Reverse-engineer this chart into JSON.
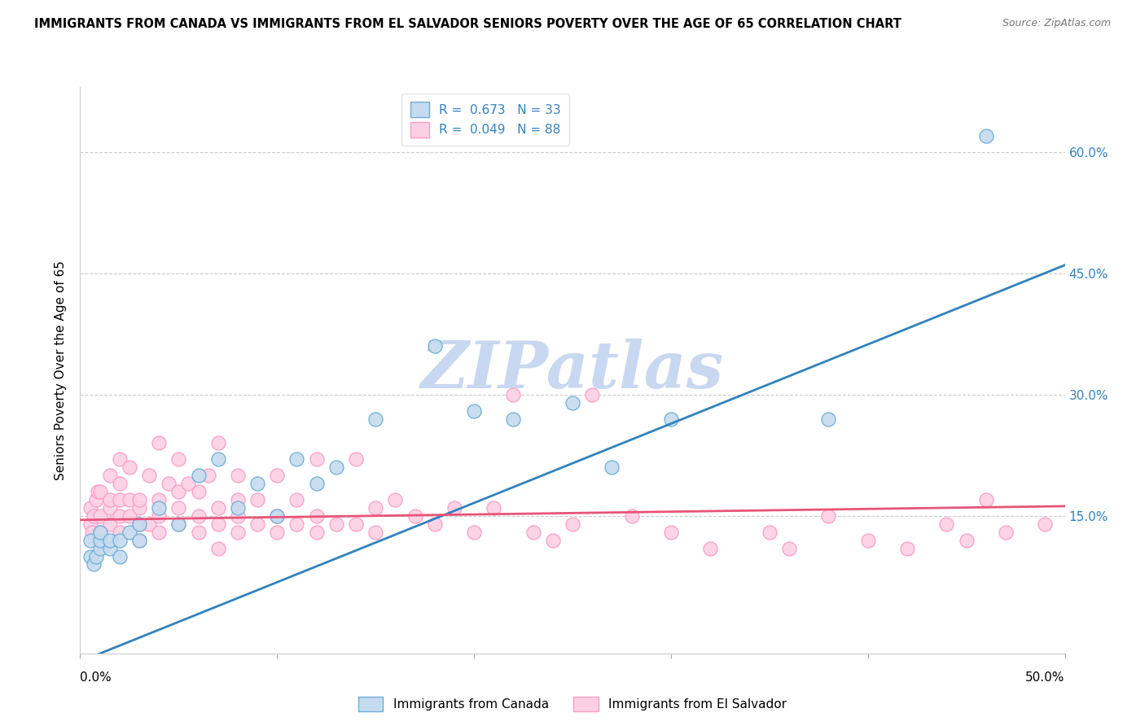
{
  "title": "IMMIGRANTS FROM CANADA VS IMMIGRANTS FROM EL SALVADOR SENIORS POVERTY OVER THE AGE OF 65 CORRELATION CHART",
  "source": "Source: ZipAtlas.com",
  "ylabel": "Seniors Poverty Over the Age of 65",
  "xlim": [
    0.0,
    0.5
  ],
  "ylim": [
    -0.02,
    0.68
  ],
  "yticks": [
    0.15,
    0.3,
    0.45,
    0.6
  ],
  "ytick_labels": [
    "15.0%",
    "30.0%",
    "45.0%",
    "60.0%"
  ],
  "xticks": [
    0.0,
    0.1,
    0.2,
    0.3,
    0.4,
    0.5
  ],
  "canada_R": "0.673",
  "canada_N": "33",
  "salvador_R": "0.049",
  "salvador_N": "88",
  "canada_scatter_color": "#6baed6",
  "canada_fill": "#c6dbef",
  "salvador_scatter_color": "#fb9ec6",
  "salvador_fill": "#fcd0e4",
  "trend_canada_color": "#3182bd",
  "trend_salvador_color": "#e8547a",
  "watermark": "ZIPatlas",
  "watermark_color": "#c8d8f0",
  "legend_label_canada": "Immigrants from Canada",
  "legend_label_salvador": "Immigrants from El Salvador",
  "canada_scatter_x": [
    0.005,
    0.005,
    0.007,
    0.008,
    0.01,
    0.01,
    0.01,
    0.015,
    0.015,
    0.02,
    0.02,
    0.025,
    0.03,
    0.03,
    0.04,
    0.05,
    0.06,
    0.07,
    0.08,
    0.09,
    0.1,
    0.11,
    0.12,
    0.13,
    0.15,
    0.18,
    0.2,
    0.22,
    0.25,
    0.27,
    0.3,
    0.38,
    0.46
  ],
  "canada_scatter_y": [
    0.1,
    0.12,
    0.09,
    0.1,
    0.11,
    0.12,
    0.13,
    0.11,
    0.12,
    0.12,
    0.1,
    0.13,
    0.14,
    0.12,
    0.16,
    0.14,
    0.2,
    0.22,
    0.16,
    0.19,
    0.15,
    0.22,
    0.19,
    0.21,
    0.27,
    0.36,
    0.28,
    0.27,
    0.29,
    0.21,
    0.27,
    0.27,
    0.62
  ],
  "salvador_scatter_x": [
    0.005,
    0.005,
    0.006,
    0.007,
    0.008,
    0.009,
    0.01,
    0.01,
    0.01,
    0.015,
    0.015,
    0.015,
    0.015,
    0.02,
    0.02,
    0.02,
    0.02,
    0.02,
    0.025,
    0.025,
    0.025,
    0.03,
    0.03,
    0.03,
    0.03,
    0.035,
    0.035,
    0.04,
    0.04,
    0.04,
    0.04,
    0.045,
    0.05,
    0.05,
    0.05,
    0.05,
    0.055,
    0.06,
    0.06,
    0.06,
    0.065,
    0.07,
    0.07,
    0.07,
    0.07,
    0.08,
    0.08,
    0.08,
    0.08,
    0.09,
    0.09,
    0.1,
    0.1,
    0.1,
    0.11,
    0.11,
    0.12,
    0.12,
    0.12,
    0.13,
    0.14,
    0.14,
    0.15,
    0.15,
    0.16,
    0.17,
    0.18,
    0.19,
    0.2,
    0.21,
    0.22,
    0.23,
    0.24,
    0.25,
    0.26,
    0.28,
    0.3,
    0.32,
    0.35,
    0.36,
    0.38,
    0.4,
    0.42,
    0.44,
    0.45,
    0.46,
    0.47,
    0.49
  ],
  "salvador_scatter_y": [
    0.14,
    0.16,
    0.13,
    0.15,
    0.17,
    0.18,
    0.13,
    0.15,
    0.18,
    0.14,
    0.16,
    0.17,
    0.2,
    0.13,
    0.15,
    0.17,
    0.19,
    0.22,
    0.15,
    0.17,
    0.21,
    0.12,
    0.14,
    0.16,
    0.17,
    0.14,
    0.2,
    0.13,
    0.15,
    0.17,
    0.24,
    0.19,
    0.14,
    0.16,
    0.18,
    0.22,
    0.19,
    0.13,
    0.15,
    0.18,
    0.2,
    0.11,
    0.14,
    0.16,
    0.24,
    0.13,
    0.15,
    0.17,
    0.2,
    0.14,
    0.17,
    0.13,
    0.15,
    0.2,
    0.14,
    0.17,
    0.13,
    0.15,
    0.22,
    0.14,
    0.14,
    0.22,
    0.13,
    0.16,
    0.17,
    0.15,
    0.14,
    0.16,
    0.13,
    0.16,
    0.3,
    0.13,
    0.12,
    0.14,
    0.3,
    0.15,
    0.13,
    0.11,
    0.13,
    0.11,
    0.15,
    0.12,
    0.11,
    0.14,
    0.12,
    0.17,
    0.13,
    0.14
  ],
  "trend_canada_x0": 0.0,
  "trend_canada_y0": -0.03,
  "trend_canada_x1": 0.5,
  "trend_canada_y1": 0.46,
  "trend_salvador_x0": 0.0,
  "trend_salvador_y0": 0.145,
  "trend_salvador_x1": 0.5,
  "trend_salvador_y1": 0.162
}
